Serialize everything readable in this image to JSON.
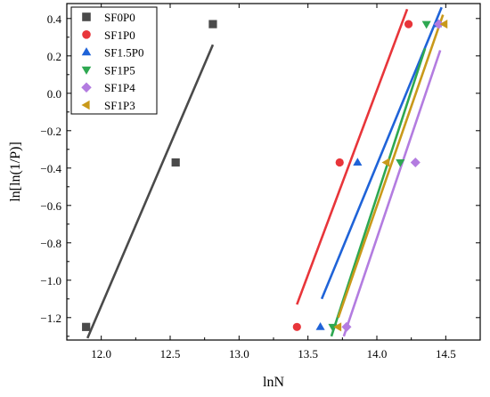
{
  "chart_data": {
    "type": "scatter",
    "title": "",
    "xlabel": "lnN",
    "ylabel": "ln[ln(1/P)]",
    "xlim": [
      11.75,
      14.75
    ],
    "ylim": [
      -1.32,
      0.48
    ],
    "xticks": [
      12.0,
      12.5,
      13.0,
      13.5,
      14.0,
      14.5
    ],
    "xtick_labels": [
      "12.0",
      "12.5",
      "13.0",
      "13.5",
      "14.0",
      "14.5"
    ],
    "yticks": [
      0.4,
      0.2,
      0.0,
      -0.2,
      -0.4,
      -0.6,
      -0.8,
      -1.0,
      -1.2
    ],
    "ytick_labels": [
      "0.4",
      "0.2",
      "0.0",
      "−0.2",
      "−0.4",
      "−0.6",
      "−0.8",
      "−1.0",
      "−1.2"
    ],
    "grid": false,
    "legend_position": "top-left",
    "series": [
      {
        "name": "SF0P0",
        "marker": "square",
        "color": "#4a4a4a",
        "points": [
          [
            11.89,
            -1.25
          ],
          [
            12.54,
            -0.37
          ],
          [
            12.81,
            0.37
          ]
        ],
        "fit": [
          [
            11.9,
            -1.31
          ],
          [
            12.81,
            0.26
          ]
        ]
      },
      {
        "name": "SF1P0",
        "marker": "circle",
        "color": "#e8353a",
        "points": [
          [
            13.42,
            -1.25
          ],
          [
            13.73,
            -0.37
          ],
          [
            14.23,
            0.37
          ]
        ],
        "fit": [
          [
            13.42,
            -1.13
          ],
          [
            14.22,
            0.45
          ]
        ]
      },
      {
        "name": "SF1.5P0",
        "marker": "triangle-up",
        "color": "#1f63d8",
        "points": [
          [
            13.59,
            -1.25
          ],
          [
            13.86,
            -0.37
          ],
          [
            14.44,
            0.37
          ]
        ],
        "fit": [
          [
            13.6,
            -1.1
          ],
          [
            14.47,
            0.46
          ]
        ]
      },
      {
        "name": "SF1P5",
        "marker": "triangle-down",
        "color": "#2ea851",
        "points": [
          [
            13.68,
            -1.25
          ],
          [
            14.17,
            -0.37
          ],
          [
            14.36,
            0.37
          ]
        ],
        "fit": [
          [
            13.67,
            -1.3
          ],
          [
            14.35,
            0.24
          ]
        ]
      },
      {
        "name": "SF1P4",
        "marker": "diamond",
        "color": "#b37ce0",
        "points": [
          [
            13.78,
            -1.25
          ],
          [
            14.28,
            -0.37
          ],
          [
            14.45,
            0.37
          ]
        ],
        "fit": [
          [
            13.76,
            -1.3
          ],
          [
            14.46,
            0.23
          ]
        ]
      },
      {
        "name": "SF1P3",
        "marker": "triangle-left",
        "color": "#c9991a",
        "points": [
          [
            13.72,
            -1.25
          ],
          [
            14.07,
            -0.37
          ],
          [
            14.49,
            0.37
          ]
        ],
        "fit": [
          [
            13.72,
            -1.2
          ],
          [
            14.48,
            0.42
          ]
        ]
      }
    ]
  }
}
